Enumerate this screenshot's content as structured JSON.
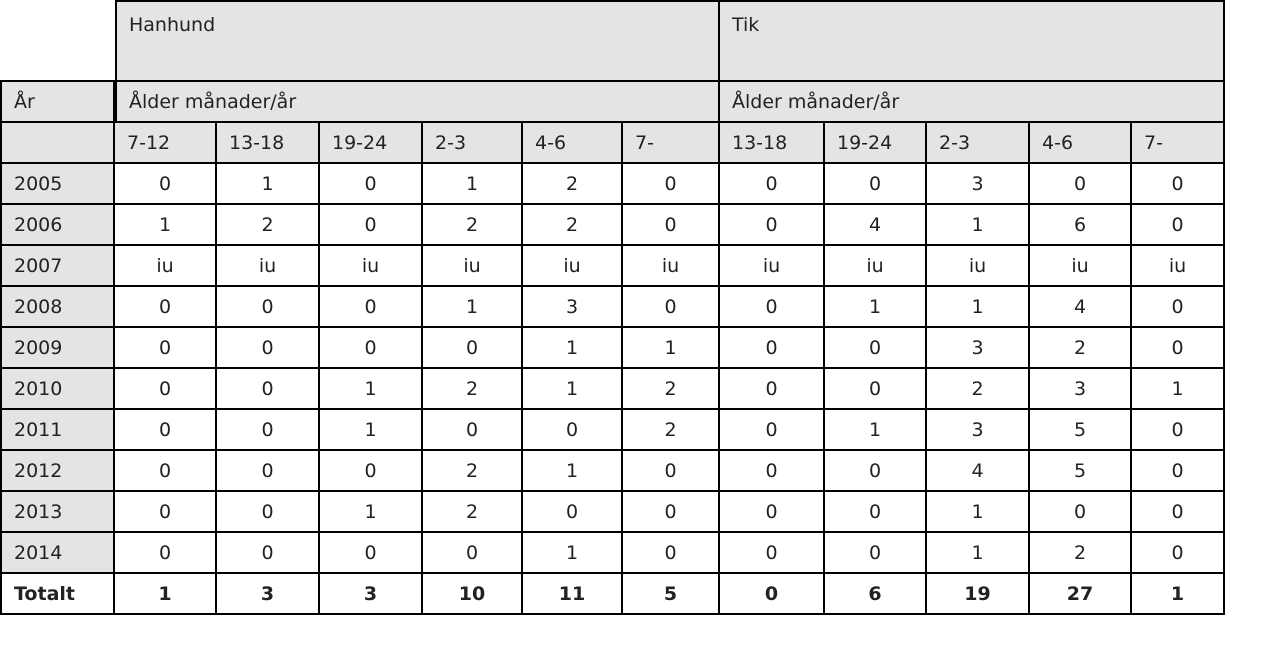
{
  "table": {
    "groups": [
      "Hanhund",
      "Tik"
    ],
    "year_header": "År",
    "age_headers": [
      "Ålder månader/år",
      "Ålder månader/år"
    ],
    "columns": [
      "7-12",
      "13-18",
      "19-24",
      "2-3",
      "4-6",
      "7-",
      "13-18",
      "19-24",
      "2-3",
      "4-6",
      "7-"
    ],
    "rows": [
      {
        "year": "2005",
        "values": [
          0,
          1,
          0,
          1,
          2,
          0,
          0,
          0,
          3,
          0,
          0
        ]
      },
      {
        "year": "2006",
        "values": [
          1,
          2,
          0,
          2,
          2,
          0,
          0,
          4,
          1,
          6,
          0
        ]
      },
      {
        "year": "2007",
        "values": [
          "iu",
          "iu",
          "iu",
          "iu",
          "iu",
          "iu",
          "iu",
          "iu",
          "iu",
          "iu",
          "iu"
        ]
      },
      {
        "year": "2008",
        "values": [
          0,
          0,
          0,
          1,
          3,
          0,
          0,
          1,
          1,
          4,
          0
        ]
      },
      {
        "year": "2009",
        "values": [
          0,
          0,
          0,
          0,
          1,
          1,
          0,
          0,
          3,
          2,
          0
        ]
      },
      {
        "year": "2010",
        "values": [
          0,
          0,
          1,
          2,
          1,
          2,
          0,
          0,
          2,
          3,
          1
        ]
      },
      {
        "year": "2011",
        "values": [
          0,
          0,
          1,
          0,
          0,
          2,
          0,
          1,
          3,
          5,
          0
        ]
      },
      {
        "year": "2012",
        "values": [
          0,
          0,
          0,
          2,
          1,
          0,
          0,
          0,
          4,
          5,
          0
        ]
      },
      {
        "year": "2013",
        "values": [
          0,
          0,
          1,
          2,
          0,
          0,
          0,
          0,
          1,
          0,
          0
        ]
      },
      {
        "year": "2014",
        "values": [
          0,
          0,
          0,
          0,
          1,
          0,
          0,
          0,
          1,
          2,
          0
        ]
      }
    ],
    "total": {
      "label": "Totalt",
      "values": [
        1,
        3,
        3,
        10,
        11,
        5,
        0,
        6,
        19,
        27,
        1
      ]
    }
  }
}
